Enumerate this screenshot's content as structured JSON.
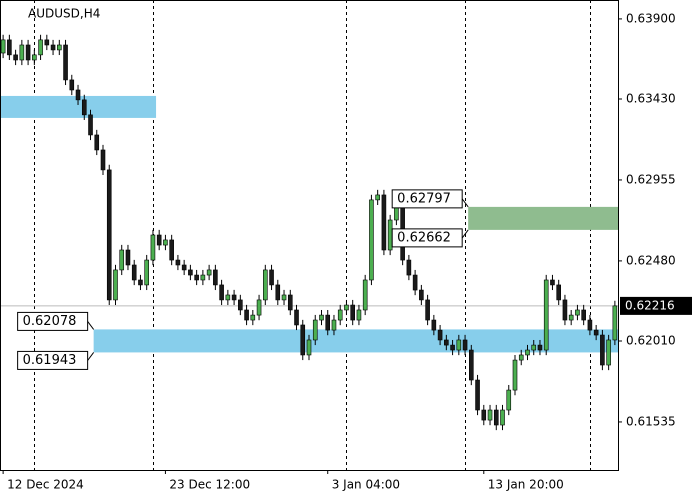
{
  "chart_data": {
    "type": "candlestick",
    "title": "AUDUSD,H4",
    "ylim": [
      0.61253,
      0.64011
    ],
    "yticks": [
      {
        "value": 0.639,
        "label": "0.63900"
      },
      {
        "value": 0.6343,
        "label": "0.63430"
      },
      {
        "value": 0.62955,
        "label": "0.62955"
      },
      {
        "value": 0.6248,
        "label": "0.62480"
      },
      {
        "value": 0.6201,
        "label": "0.62010"
      },
      {
        "value": 0.61535,
        "label": "0.61535"
      }
    ],
    "categories": [
      "12 Dec 2024",
      null,
      null,
      null,
      null,
      null,
      null,
      null,
      null,
      null,
      null,
      null,
      null,
      null,
      null,
      null,
      null,
      null,
      null,
      null,
      null,
      null,
      null,
      null,
      null,
      null,
      "23 Dec 12:00",
      null,
      null,
      null,
      null,
      null,
      null,
      null,
      null,
      null,
      null,
      null,
      null,
      null,
      null,
      null,
      null,
      null,
      null,
      null,
      null,
      null,
      null,
      null,
      null,
      null,
      "3 Jan 04:00",
      null,
      null,
      null,
      null,
      null,
      null,
      null,
      null,
      null,
      null,
      null,
      null,
      null,
      null,
      null,
      null,
      null,
      null,
      null,
      null,
      null,
      null,
      null,
      null,
      "13 Jan 20:00",
      null,
      null,
      null,
      null,
      null,
      null,
      null,
      null,
      null,
      null,
      null,
      null,
      null,
      null,
      null,
      null,
      null,
      null,
      null,
      null,
      null
    ],
    "xgrid": [
      5,
      24,
      55,
      74,
      94
    ],
    "grid": true,
    "up_color": "#4caf50",
    "down_color": "#1a1a1a",
    "open": [
      0.637,
      0.63777,
      0.63689,
      0.63659,
      0.63747,
      0.63659,
      0.63689,
      0.63777,
      0.63747,
      0.63718,
      0.63747,
      0.63542,
      0.63483,
      0.63425,
      0.63337,
      0.63219,
      0.63131,
      0.63014,
      0.62251,
      0.62427,
      0.62544,
      0.62456,
      0.62368,
      0.62339,
      0.62485,
      0.62632,
      0.62573,
      0.62603,
      0.62485,
      0.62456,
      0.62427,
      0.62397,
      0.62368,
      0.62397,
      0.62427,
      0.62339,
      0.62251,
      0.6228,
      0.62251,
      0.62192,
      0.62133,
      0.62162,
      0.62251,
      0.62427,
      0.62339,
      0.62251,
      0.6228,
      0.62192,
      0.62104,
      0.61928,
      0.62016,
      0.62133,
      0.62162,
      0.62074,
      0.62133,
      0.62192,
      0.62221,
      0.62133,
      0.62192,
      0.62368,
      0.62838,
      0.62867,
      0.62544,
      0.6272,
      0.62808,
      0.62485,
      0.62397,
      0.62309,
      0.62251,
      0.62133,
      0.62074,
      0.62016,
      0.61986,
      0.61957,
      0.62016,
      0.61957,
      0.61781,
      0.61605,
      0.61546,
      0.61605,
      0.61517,
      0.61605,
      0.61722,
      0.61898,
      0.61928,
      0.61957,
      0.61986,
      0.61957,
      0.62368,
      0.62339,
      0.62251,
      0.62133,
      0.62162,
      0.62192,
      0.62133,
      0.62074,
      0.62045,
      0.61869,
      0.62016
    ],
    "high": [
      0.63807,
      0.63807,
      0.63719,
      0.63777,
      0.63777,
      0.63719,
      0.63807,
      0.63807,
      0.63777,
      0.63777,
      0.63777,
      0.63572,
      0.63513,
      0.63455,
      0.63367,
      0.63249,
      0.63161,
      0.63044,
      0.62457,
      0.62574,
      0.62574,
      0.62486,
      0.62398,
      0.62515,
      0.62662,
      0.62662,
      0.62633,
      0.62633,
      0.62515,
      0.62486,
      0.62457,
      0.62427,
      0.62427,
      0.62457,
      0.62457,
      0.62369,
      0.6231,
      0.6231,
      0.62281,
      0.62222,
      0.62192,
      0.62281,
      0.62457,
      0.62457,
      0.62369,
      0.6231,
      0.6231,
      0.62222,
      0.62134,
      0.62046,
      0.62163,
      0.62192,
      0.62192,
      0.62163,
      0.62222,
      0.62251,
      0.62251,
      0.62222,
      0.62398,
      0.62868,
      0.62897,
      0.62897,
      0.6275,
      0.62838,
      0.62838,
      0.62515,
      0.62427,
      0.62339,
      0.62281,
      0.62163,
      0.62104,
      0.62046,
      0.62016,
      0.62046,
      0.62046,
      0.61987,
      0.61811,
      0.61635,
      0.61635,
      0.61635,
      0.61635,
      0.61752,
      0.61928,
      0.61958,
      0.61987,
      0.62016,
      0.62016,
      0.62398,
      0.62398,
      0.62369,
      0.62281,
      0.62192,
      0.62222,
      0.62222,
      0.62163,
      0.62104,
      0.62075,
      0.62046,
      0.62246
    ],
    "low": [
      0.6367,
      0.63659,
      0.63629,
      0.63629,
      0.63629,
      0.63629,
      0.63659,
      0.63717,
      0.63688,
      0.63688,
      0.63512,
      0.63453,
      0.63395,
      0.63307,
      0.63189,
      0.63101,
      0.62984,
      0.62221,
      0.62221,
      0.62397,
      0.62426,
      0.62338,
      0.62309,
      0.62309,
      0.62455,
      0.62543,
      0.62543,
      0.62455,
      0.62426,
      0.62397,
      0.62367,
      0.62338,
      0.62338,
      0.62367,
      0.62309,
      0.62221,
      0.62221,
      0.62221,
      0.62162,
      0.62103,
      0.62103,
      0.62132,
      0.62221,
      0.62309,
      0.62221,
      0.62221,
      0.62162,
      0.62074,
      0.61898,
      0.61898,
      0.61986,
      0.62103,
      0.62044,
      0.62044,
      0.62103,
      0.62162,
      0.62103,
      0.62103,
      0.62162,
      0.62338,
      0.62808,
      0.62514,
      0.62514,
      0.6269,
      0.62455,
      0.62367,
      0.62279,
      0.62221,
      0.62103,
      0.62044,
      0.61986,
      0.61956,
      0.61927,
      0.61927,
      0.61927,
      0.61751,
      0.61575,
      0.61516,
      0.61516,
      0.61487,
      0.61487,
      0.61575,
      0.61692,
      0.61868,
      0.61898,
      0.61927,
      0.61927,
      0.61927,
      0.62309,
      0.62221,
      0.62103,
      0.62103,
      0.62132,
      0.62103,
      0.62044,
      0.62015,
      0.61839,
      0.61839,
      0.61986
    ],
    "close": [
      0.63777,
      0.63689,
      0.63659,
      0.63747,
      0.63659,
      0.63689,
      0.63777,
      0.63747,
      0.63718,
      0.63747,
      0.63542,
      0.63483,
      0.63425,
      0.63337,
      0.63219,
      0.63131,
      0.63014,
      0.62251,
      0.62427,
      0.62544,
      0.62456,
      0.62368,
      0.62339,
      0.62485,
      0.62632,
      0.62573,
      0.62603,
      0.62485,
      0.62456,
      0.62427,
      0.62397,
      0.62368,
      0.62397,
      0.62427,
      0.62339,
      0.62251,
      0.6228,
      0.62251,
      0.62192,
      0.62133,
      0.62162,
      0.62251,
      0.62427,
      0.62339,
      0.62251,
      0.6228,
      0.62192,
      0.62104,
      0.61928,
      0.62016,
      0.62133,
      0.62162,
      0.62074,
      0.62133,
      0.62192,
      0.62221,
      0.62133,
      0.62192,
      0.62368,
      0.62838,
      0.62867,
      0.62544,
      0.6272,
      0.62808,
      0.62485,
      0.62397,
      0.62309,
      0.62251,
      0.62133,
      0.62074,
      0.62016,
      0.61986,
      0.61957,
      0.62016,
      0.61957,
      0.61781,
      0.61605,
      0.61546,
      0.61605,
      0.61517,
      0.61605,
      0.61722,
      0.61898,
      0.61928,
      0.61957,
      0.61986,
      0.61957,
      0.62368,
      0.62339,
      0.62251,
      0.62133,
      0.62162,
      0.62192,
      0.62133,
      0.62074,
      0.62045,
      0.61869,
      0.62016,
      0.62216
    ],
    "last": 0.62216,
    "zones": [
      {
        "low": 0.63319,
        "high": 0.63448,
        "color": "#87ceeb",
        "from": 0,
        "to": 24,
        "labeled": false
      },
      {
        "low": 0.61943,
        "high": 0.62078,
        "color": "#87ceeb",
        "from": 15,
        "to": 98,
        "labeled": true
      },
      {
        "low": 0.62662,
        "high": 0.62797,
        "color": "#8fbc8f",
        "from": 75,
        "to": 98,
        "labeled": true
      }
    ]
  }
}
